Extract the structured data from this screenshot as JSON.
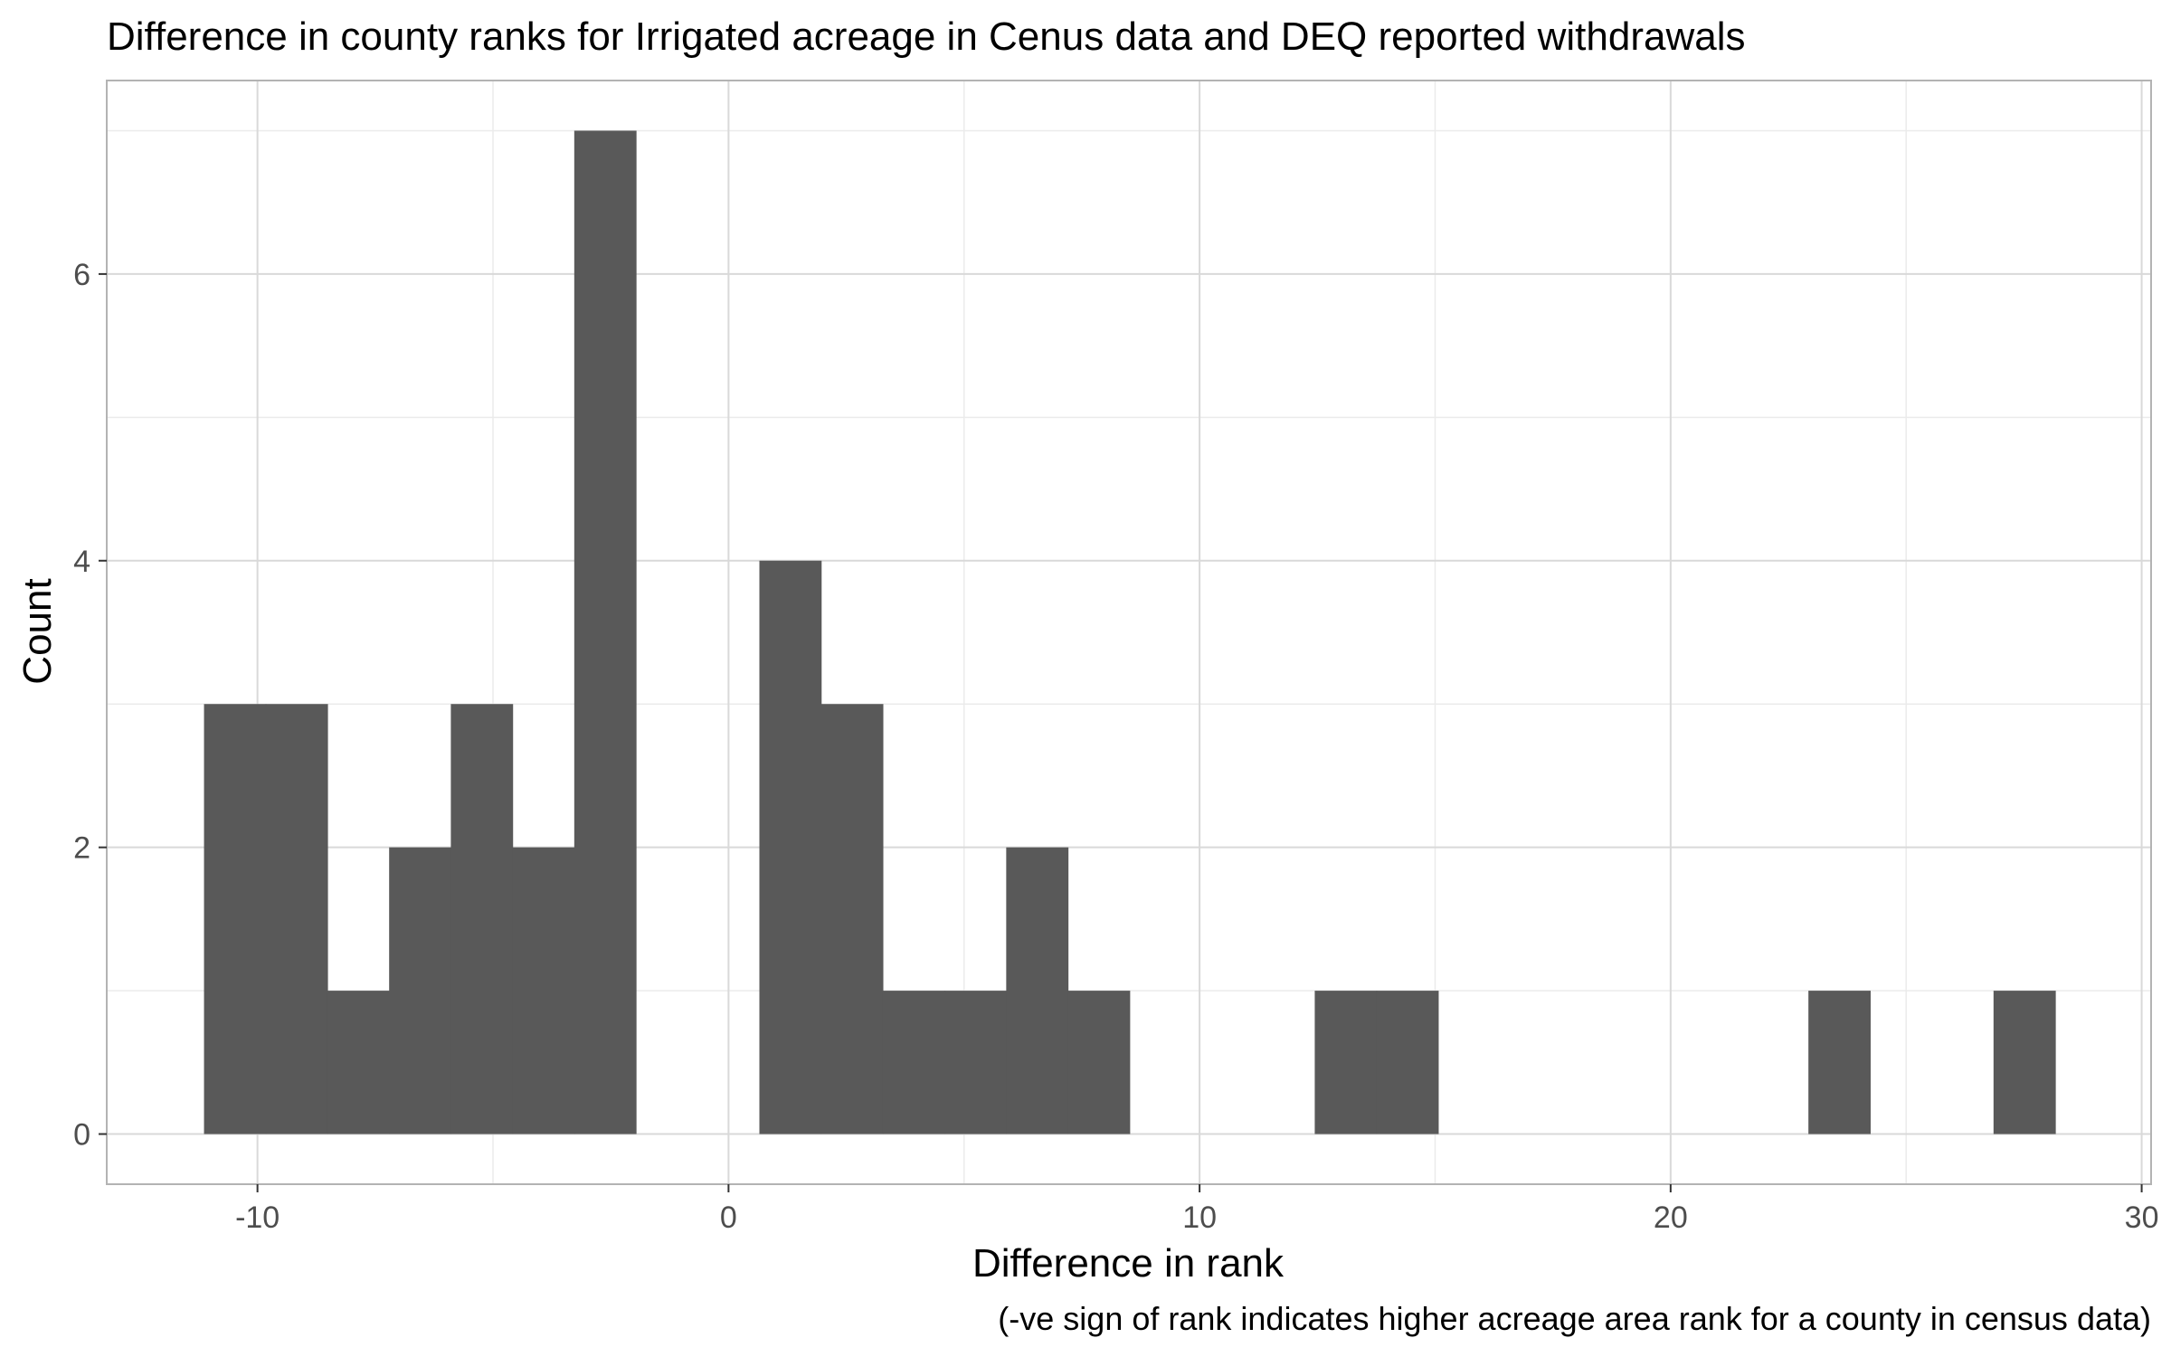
{
  "chart_data": {
    "type": "bar",
    "title": "Difference in county ranks for Irrigated acreage in Cenus data and DEQ reported withdrawals",
    "xlabel": "Difference in rank",
    "ylabel": "Count",
    "caption": "(-ve sign of rank indicates higher acreage area rank for a county in census data)",
    "xlim": [
      -13.2,
      30.2
    ],
    "ylim": [
      -0.35,
      7.35
    ],
    "x_ticks": [
      -10,
      0,
      10,
      20,
      30
    ],
    "x_tick_labels": [
      "-10",
      "0",
      "10",
      "20",
      "30"
    ],
    "y_ticks": [
      0,
      2,
      4,
      6
    ],
    "y_tick_labels": [
      "0",
      "2",
      "4",
      "6"
    ],
    "x_minor_ticks": [
      -5,
      5,
      15,
      25
    ],
    "y_minor_ticks": [
      1,
      3,
      5,
      7
    ],
    "grid": true,
    "bin_width": 1.31,
    "bins": [
      {
        "x": -10.48,
        "count": 3
      },
      {
        "x": -9.17,
        "count": 3
      },
      {
        "x": -7.86,
        "count": 1
      },
      {
        "x": -6.55,
        "count": 2
      },
      {
        "x": -5.24,
        "count": 3
      },
      {
        "x": -3.93,
        "count": 2
      },
      {
        "x": -2.62,
        "count": 7
      },
      {
        "x": -1.31,
        "count": 0
      },
      {
        "x": 0.0,
        "count": 0
      },
      {
        "x": 1.31,
        "count": 4
      },
      {
        "x": 2.62,
        "count": 3
      },
      {
        "x": 3.93,
        "count": 1
      },
      {
        "x": 5.24,
        "count": 1
      },
      {
        "x": 6.55,
        "count": 2
      },
      {
        "x": 7.86,
        "count": 1
      },
      {
        "x": 9.17,
        "count": 0
      },
      {
        "x": 10.48,
        "count": 0
      },
      {
        "x": 11.79,
        "count": 0
      },
      {
        "x": 13.1,
        "count": 1
      },
      {
        "x": 14.41,
        "count": 1
      },
      {
        "x": 15.72,
        "count": 0
      },
      {
        "x": 17.03,
        "count": 0
      },
      {
        "x": 18.34,
        "count": 0
      },
      {
        "x": 19.65,
        "count": 0
      },
      {
        "x": 20.96,
        "count": 0
      },
      {
        "x": 22.27,
        "count": 0
      },
      {
        "x": 23.58,
        "count": 1
      },
      {
        "x": 24.89,
        "count": 0
      },
      {
        "x": 26.2,
        "count": 0
      },
      {
        "x": 27.51,
        "count": 1
      }
    ],
    "bar_color": "#595959",
    "grid_color": "#d9d9d9",
    "grid_minor_color": "#ebebeb",
    "panel_border_color": "#b3b3b3"
  }
}
